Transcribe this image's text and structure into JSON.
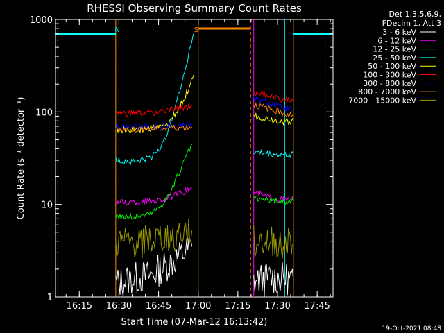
{
  "chart_data": {
    "type": "line",
    "title": "RHESSI Observing Summary Count Rates",
    "xlabel": "Start Time (07-Mar-12 16:13:42)",
    "ylabel": "Count Rate (s⁻¹ detector⁻¹)",
    "yscale": "log",
    "ylim": [
      1,
      1000
    ],
    "xlim_minutes": [
      16.1,
      17.85
    ],
    "x_tick_labels": [
      "16:15",
      "16:30",
      "16:45",
      "17:00",
      "17:15",
      "17:30",
      "17:45"
    ],
    "x_tick_hours": [
      16.25,
      16.5,
      16.75,
      17.0,
      17.25,
      17.5,
      17.75
    ],
    "y_tick_labels": [
      "1",
      "10",
      "100",
      "1000"
    ],
    "y_tick_values": [
      1,
      10,
      100,
      1000
    ],
    "legend_header": [
      "Det 1,3,5,6,9,",
      "FDecim 1, Att 3"
    ],
    "legend_placement": "outside-right",
    "timestamp": "19-Oct-2021 08:48",
    "series": [
      {
        "name": "3 - 6 keV",
        "color": "#ffffff",
        "segments": [
          [
            [
              16.48,
              1.4
            ],
            [
              16.6,
              1.6
            ],
            [
              16.7,
              1.7
            ],
            [
              16.85,
              2.5
            ],
            [
              16.96,
              3.5
            ]
          ],
          [
            [
              17.35,
              1.5
            ],
            [
              17.45,
              1.6
            ],
            [
              17.55,
              1.6
            ],
            [
              17.6,
              1.5
            ]
          ]
        ]
      },
      {
        "name": "6 - 12 keV",
        "color": "#ff00ff",
        "segments": [
          [
            [
              16.48,
              10.5
            ],
            [
              16.6,
              10.5
            ],
            [
              16.7,
              10.8
            ],
            [
              16.8,
              11.5
            ],
            [
              16.88,
              13
            ],
            [
              16.96,
              15
            ]
          ],
          [
            [
              17.35,
              13.5
            ],
            [
              17.45,
              12
            ],
            [
              17.55,
              11.2
            ],
            [
              17.6,
              11.5
            ]
          ]
        ]
      },
      {
        "name": "12 - 25 keV",
        "color": "#00ff00",
        "segments": [
          [
            [
              16.48,
              7.5
            ],
            [
              16.6,
              7.3
            ],
            [
              16.7,
              8
            ],
            [
              16.76,
              9.5
            ],
            [
              16.82,
              13
            ],
            [
              16.88,
              22
            ],
            [
              16.96,
              45
            ]
          ],
          [
            [
              17.35,
              11.5
            ],
            [
              17.45,
              11
            ],
            [
              17.55,
              10.6
            ],
            [
              17.6,
              10.8
            ]
          ]
        ]
      },
      {
        "name": "25 - 50 keV",
        "color": "#00ffff",
        "segments": [
          [
            [
              16.48,
              30
            ],
            [
              16.6,
              29
            ],
            [
              16.7,
              32
            ],
            [
              16.78,
              45
            ],
            [
              16.86,
              120
            ],
            [
              16.92,
              300
            ],
            [
              16.97,
              700
            ]
          ],
          [
            [
              17.35,
              37
            ],
            [
              17.45,
              35
            ],
            [
              17.55,
              34
            ],
            [
              17.6,
              35
            ]
          ]
        ]
      },
      {
        "name": "50 - 100 keV",
        "color": "#ffff00",
        "segments": [
          [
            [
              16.48,
              65
            ],
            [
              16.6,
              64
            ],
            [
              16.7,
              66
            ],
            [
              16.8,
              70
            ],
            [
              16.88,
              110
            ],
            [
              16.94,
              180
            ],
            [
              16.97,
              250
            ]
          ],
          [
            [
              17.35,
              90
            ],
            [
              17.45,
              83
            ],
            [
              17.55,
              78
            ],
            [
              17.6,
              80
            ]
          ]
        ]
      },
      {
        "name": "100 - 300 keV",
        "color": "#ff0000",
        "segments": [
          [
            [
              16.48,
              95
            ],
            [
              16.6,
              96
            ],
            [
              16.7,
              98
            ],
            [
              16.8,
              103
            ],
            [
              16.9,
              110
            ],
            [
              16.96,
              118
            ]
          ],
          [
            [
              17.35,
              165
            ],
            [
              17.45,
              150
            ],
            [
              17.55,
              135
            ],
            [
              17.6,
              140
            ]
          ]
        ]
      },
      {
        "name": "300 - 800 keV",
        "color": "#0000ff",
        "segments": [
          [
            [
              16.48,
              69
            ],
            [
              16.6,
              68
            ],
            [
              16.7,
              70
            ],
            [
              16.8,
              71
            ],
            [
              16.9,
              72
            ],
            [
              16.96,
              73
            ]
          ],
          [
            [
              17.35,
              140
            ],
            [
              17.45,
              125
            ],
            [
              17.55,
              108
            ],
            [
              17.6,
              105
            ]
          ]
        ]
      },
      {
        "name": "800 - 7000 keV",
        "color": "#ff8c00",
        "segments": [
          [
            [
              16.48,
              65
            ],
            [
              16.6,
              65
            ],
            [
              16.7,
              66
            ],
            [
              16.8,
              67
            ],
            [
              16.9,
              68
            ],
            [
              16.96,
              69
            ]
          ],
          [
            [
              17.35,
              120
            ],
            [
              17.45,
              108
            ],
            [
              17.55,
              95
            ],
            [
              17.6,
              93
            ]
          ]
        ]
      },
      {
        "name": "7000 - 15000 keV",
        "color": "#999900",
        "segments": [
          [
            [
              16.48,
              3.7
            ],
            [
              16.6,
              3.8
            ],
            [
              16.7,
              4.0
            ],
            [
              16.8,
              4.3
            ],
            [
              16.9,
              4.8
            ],
            [
              16.96,
              5.2
            ]
          ],
          [
            [
              17.35,
              4.0
            ],
            [
              17.45,
              3.8
            ],
            [
              17.55,
              3.8
            ],
            [
              17.6,
              3.8
            ]
          ]
        ]
      }
    ],
    "night_periods": [
      [
        16.1,
        16.48
      ],
      [
        17.6,
        17.85
      ]
    ],
    "saa_periods": [
      [
        17.0,
        17.33
      ]
    ],
    "markers": [
      {
        "label": "N",
        "time": 16.5,
        "color": "#00ffff"
      },
      {
        "label": "S",
        "time": 17.0,
        "color": "#ff8c00"
      }
    ],
    "vertical_lines": [
      {
        "time": 16.115,
        "color": "#00ffff",
        "style": "solid"
      },
      {
        "time": 16.48,
        "color": "#ff8c00",
        "style": "solid"
      },
      {
        "time": 16.5,
        "color": "#00ffff",
        "style": "dashed"
      },
      {
        "time": 17.0,
        "color": "#ff8c00",
        "style": "solid"
      },
      {
        "time": 17.33,
        "color": "#ff8c00",
        "style": "dashed"
      },
      {
        "time": 17.35,
        "color": "#ff00ff",
        "style": "solid"
      },
      {
        "time": 17.545,
        "color": "#00ffff",
        "style": "solid"
      },
      {
        "time": 17.6,
        "color": "#ff8c00",
        "style": "solid"
      },
      {
        "time": 17.8,
        "color": "#00ffff",
        "style": "dashed"
      }
    ],
    "flag_bar_value": 700
  }
}
